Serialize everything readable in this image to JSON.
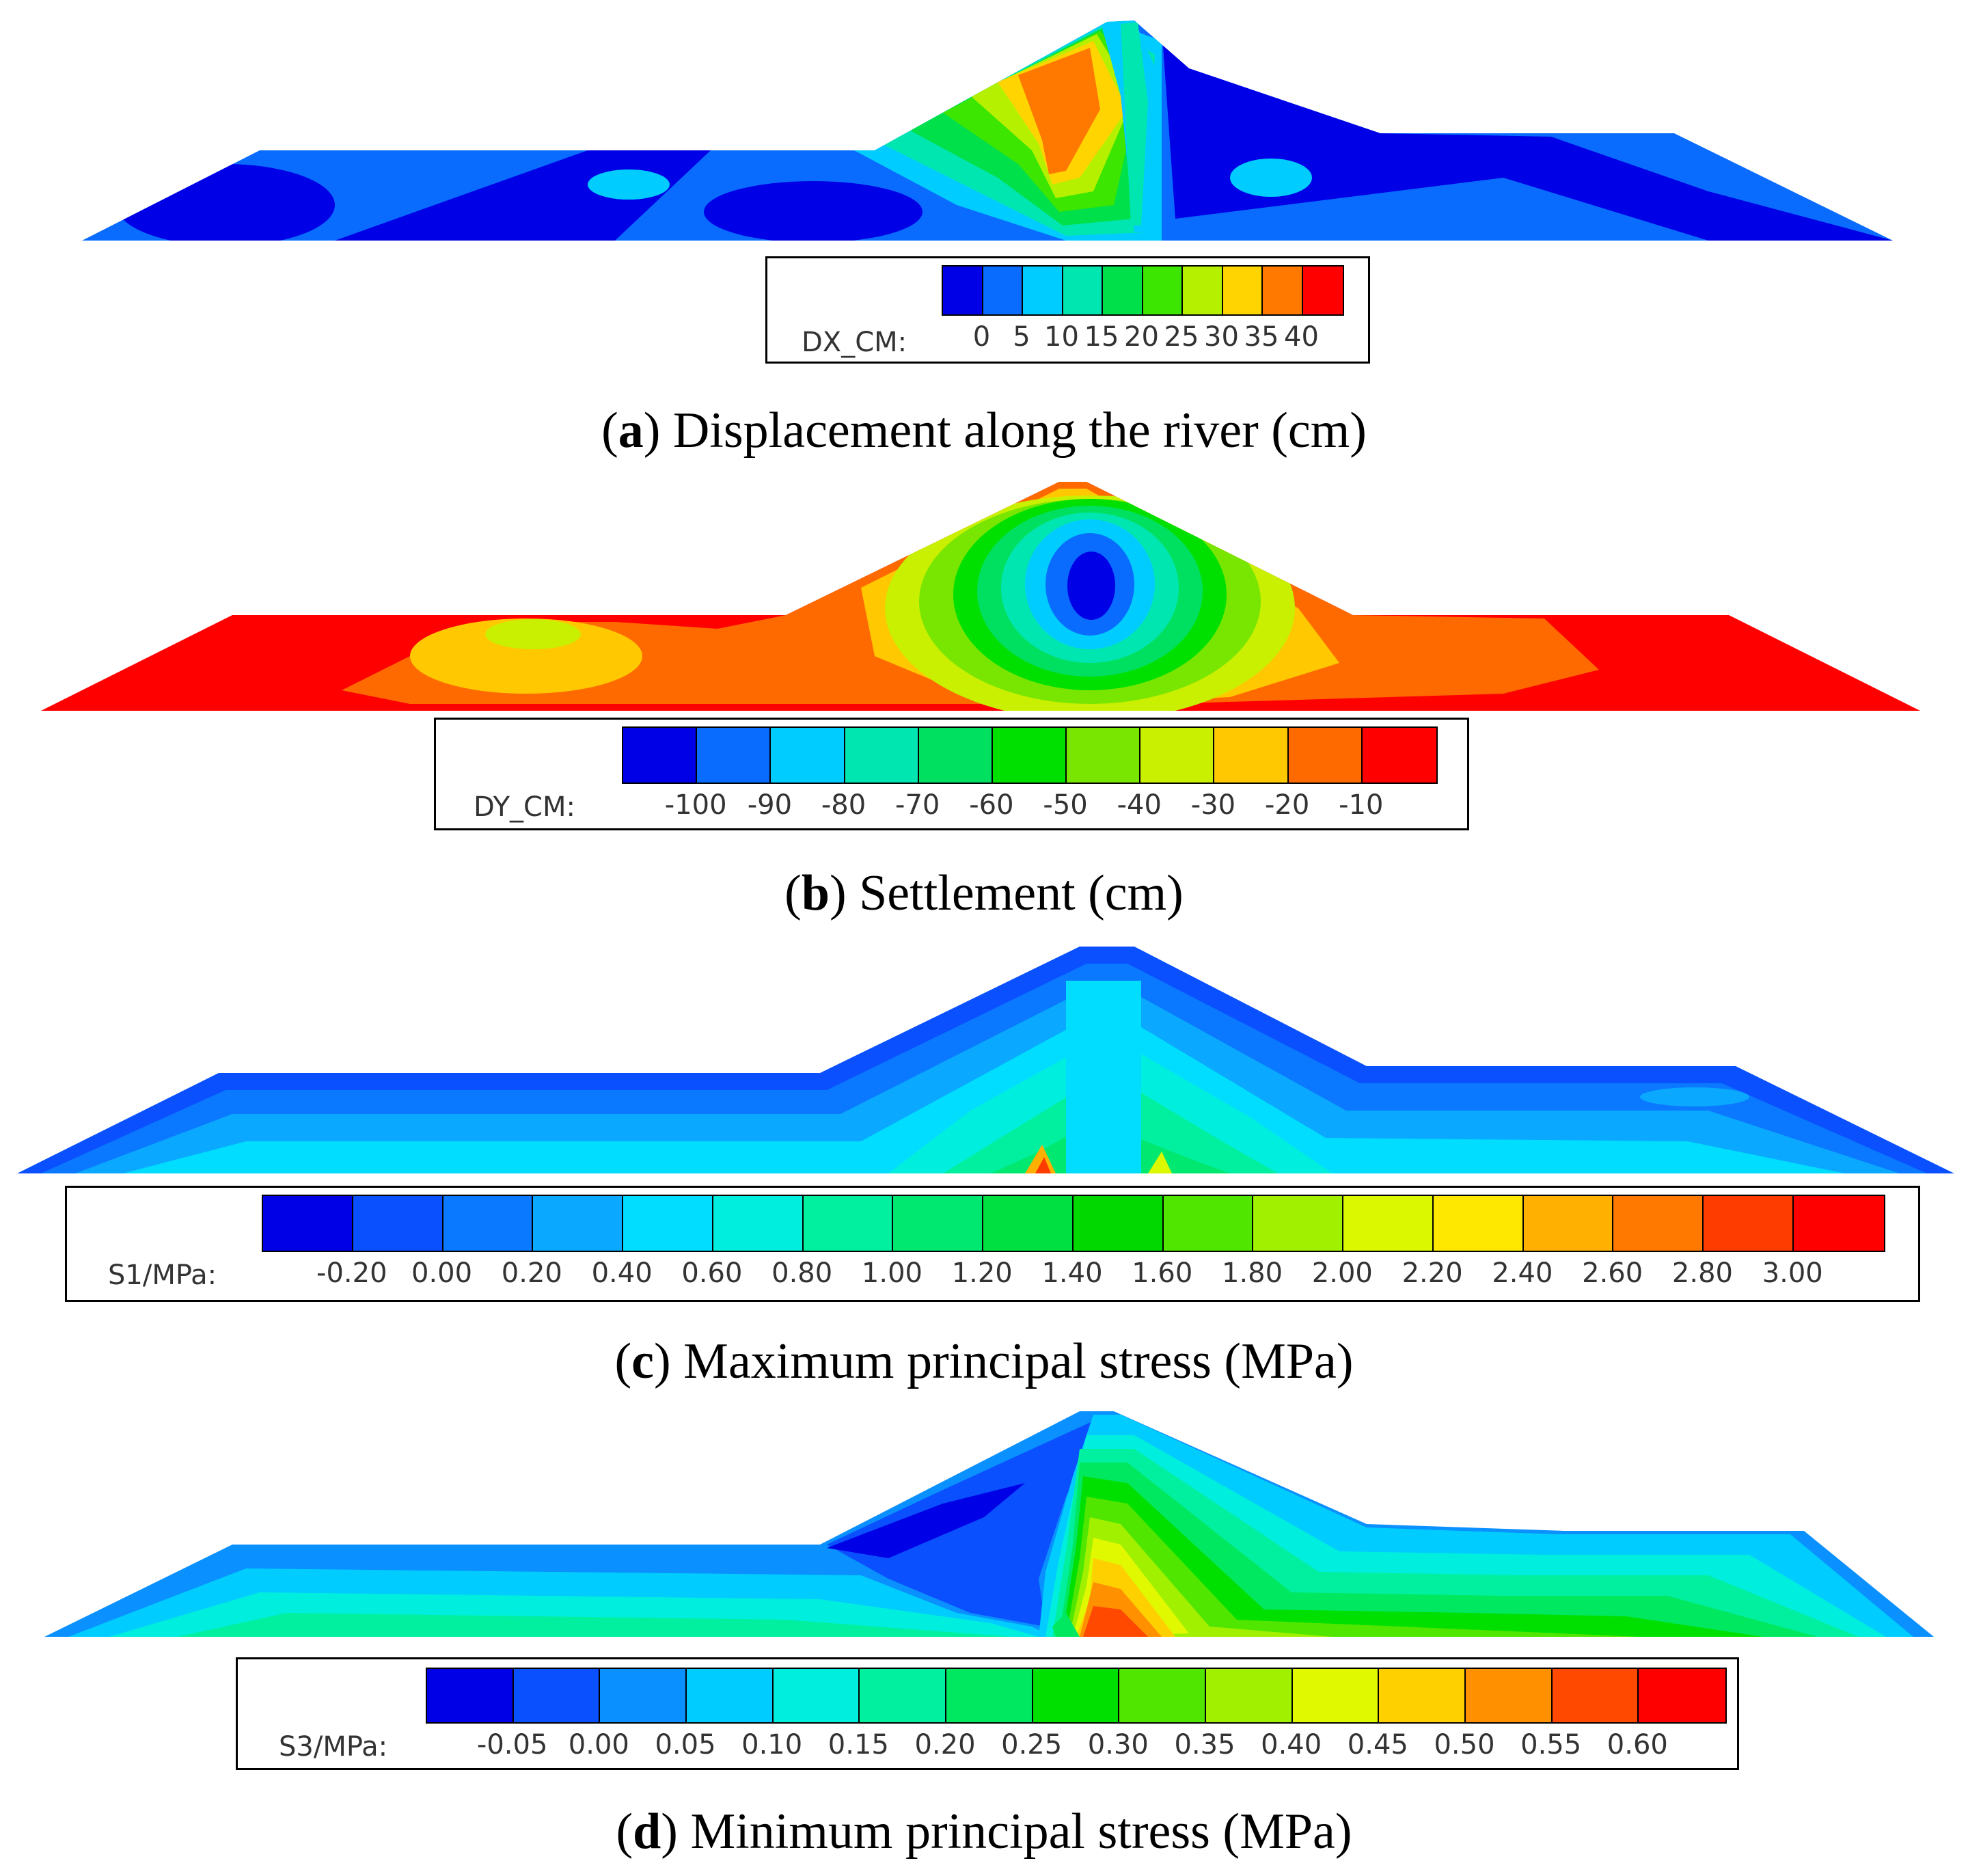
{
  "panels": [
    {
      "id": "a",
      "caption_letter": "a",
      "caption_text": "Displacement along the river (cm)",
      "legend_label": "DX_CM:",
      "ticks": [
        "0",
        "5",
        "10",
        "15",
        "20",
        "25",
        "30",
        "35",
        "40"
      ],
      "colors": [
        "#0000e6",
        "#0a6cff",
        "#00ccff",
        "#00e6b0",
        "#00e04a",
        "#3ce600",
        "#b4f000",
        "#ffd400",
        "#ff7800",
        "#ff0000"
      ]
    },
    {
      "id": "b",
      "caption_letter": "b",
      "caption_text": "Settlement (cm)",
      "legend_label": "DY_CM:",
      "ticks": [
        "-100",
        "-90",
        "-80",
        "-70",
        "-60",
        "-50",
        "-40",
        "-30",
        "-20",
        "-10"
      ],
      "colors": [
        "#0000e6",
        "#0a6cff",
        "#00ccff",
        "#00e6b0",
        "#00e060",
        "#00e000",
        "#78e600",
        "#c8f000",
        "#ffc800",
        "#ff6a00",
        "#ff0000"
      ]
    },
    {
      "id": "c",
      "caption_letter": "c",
      "caption_text": "Maximum principal stress (MPa)",
      "legend_label": "S1/MPa:",
      "ticks": [
        "-0.20",
        "0.00",
        "0.20",
        "0.40",
        "0.60",
        "0.80",
        "1.00",
        "1.20",
        "1.40",
        "1.60",
        "1.80",
        "2.00",
        "2.20",
        "2.40",
        "2.60",
        "2.80",
        "3.00"
      ],
      "colors": [
        "#0000e6",
        "#0a50ff",
        "#0a78ff",
        "#0aa8ff",
        "#00ddff",
        "#00eedd",
        "#00f0a0",
        "#00e870",
        "#00e040",
        "#00d800",
        "#50e600",
        "#a0f000",
        "#dcf800",
        "#ffe800",
        "#ffb000",
        "#ff7800",
        "#ff3c00",
        "#ff0000"
      ]
    },
    {
      "id": "d",
      "caption_letter": "d",
      "caption_text": "Minimum principal stress (MPa)",
      "legend_label": "S3/MPa:",
      "ticks": [
        "-0.05",
        "0.00",
        "0.05",
        "0.10",
        "0.15",
        "0.20",
        "0.25",
        "0.30",
        "0.35",
        "0.40",
        "0.45",
        "0.50",
        "0.55",
        "0.60"
      ],
      "colors": [
        "#0000e6",
        "#0a50ff",
        "#0a90ff",
        "#00ccff",
        "#00eedd",
        "#00f0a0",
        "#00e860",
        "#00e000",
        "#50e600",
        "#a0f000",
        "#e0f800",
        "#ffd000",
        "#ff9000",
        "#ff4800",
        "#ff0000"
      ]
    }
  ]
}
